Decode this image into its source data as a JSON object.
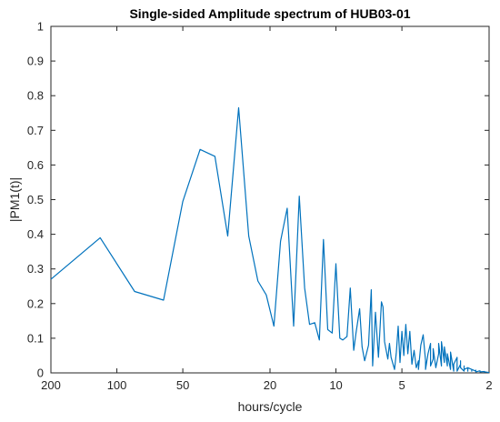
{
  "chart_data": {
    "type": "line",
    "title": "Single-sided Amplitude spectrum of HUB03-01",
    "xlabel": "hours/cycle",
    "ylabel": "|PM1(t)|",
    "x_scale": "log-reversed",
    "xlim": [
      200,
      2
    ],
    "ylim": [
      0,
      1
    ],
    "x_ticks": [
      200,
      100,
      50,
      20,
      10,
      5,
      2
    ],
    "x_tick_labels": [
      "200",
      "100",
      "50",
      "20",
      "10",
      "5",
      "2"
    ],
    "y_ticks": [
      0,
      0.1,
      0.2,
      0.3,
      0.4,
      0.5,
      0.6,
      0.7,
      0.8,
      0.9,
      1
    ],
    "y_tick_labels": [
      "0",
      "0.1",
      "0.2",
      "0.3",
      "0.4",
      "0.5",
      "0.6",
      "0.7",
      "0.8",
      "0.9",
      "1"
    ],
    "grid": false,
    "box": true,
    "series": [
      {
        "color": "#0072BD",
        "x": [
          200.0,
          119.2,
          83.0,
          61.2,
          50.0,
          41.7,
          35.7,
          31.2,
          27.8,
          25.0,
          22.7,
          20.8,
          19.2,
          17.9,
          16.7,
          15.6,
          14.7,
          13.9,
          13.2,
          12.5,
          11.9,
          11.4,
          10.9,
          10.4,
          10.0,
          9.6,
          9.3,
          8.9,
          8.6,
          8.3,
          8.1,
          7.8,
          7.6,
          7.4,
          7.1,
          6.9,
          6.8,
          6.6,
          6.4,
          6.2,
          6.1,
          6.0,
          5.8,
          5.7,
          5.6,
          5.4,
          5.3,
          5.2,
          5.1,
          5.0,
          4.9,
          4.8,
          4.7,
          4.6,
          4.5,
          4.4,
          4.3,
          4.2,
          4.2,
          4.1,
          4.0,
          3.9,
          3.9,
          3.8,
          3.7,
          3.7,
          3.6,
          3.6,
          3.5,
          3.4,
          3.4,
          3.3,
          3.3,
          3.2,
          3.2,
          3.1,
          3.1,
          3.0,
          3.0,
          3.0,
          2.9,
          2.9,
          2.8,
          2.8,
          2.8,
          2.7,
          2.7,
          2.7,
          2.6,
          2.6,
          2.6,
          2.5,
          2.5,
          2.5,
          2.4,
          2.4,
          2.4,
          2.3,
          2.3,
          2.3,
          2.2,
          2.2,
          2.2,
          2.2,
          2.1,
          2.1,
          2.1,
          2.05,
          2.0
        ],
        "y": [
          0.27,
          0.39,
          0.235,
          0.21,
          0.495,
          0.645,
          0.625,
          0.395,
          0.765,
          0.395,
          0.265,
          0.225,
          0.135,
          0.38,
          0.475,
          0.135,
          0.51,
          0.245,
          0.14,
          0.145,
          0.095,
          0.385,
          0.125,
          0.115,
          0.315,
          0.1,
          0.095,
          0.105,
          0.245,
          0.065,
          0.115,
          0.185,
          0.075,
          0.035,
          0.08,
          0.24,
          0.02,
          0.175,
          0.045,
          0.205,
          0.19,
          0.09,
          0.04,
          0.085,
          0.045,
          0.01,
          0.06,
          0.135,
          0.03,
          0.12,
          0.05,
          0.14,
          0.055,
          0.12,
          0.025,
          0.065,
          0.015,
          0.035,
          0.01,
          0.08,
          0.11,
          0.035,
          0.01,
          0.055,
          0.085,
          0.02,
          0.04,
          0.07,
          0.015,
          0.055,
          0.085,
          0.02,
          0.09,
          0.03,
          0.075,
          0.02,
          0.055,
          0.01,
          0.035,
          0.06,
          0.005,
          0.025,
          0.045,
          0.01,
          0.005,
          0.025,
          0.035,
          0.015,
          0.005,
          0.02,
          0.01,
          0.015,
          0.005,
          0.015,
          0.01,
          0.005,
          0.01,
          0.005,
          0.008,
          0.003,
          0.006,
          0.004,
          0.005,
          0.003,
          0.004,
          0.002,
          0.003,
          0.002,
          0.001
        ]
      }
    ]
  }
}
